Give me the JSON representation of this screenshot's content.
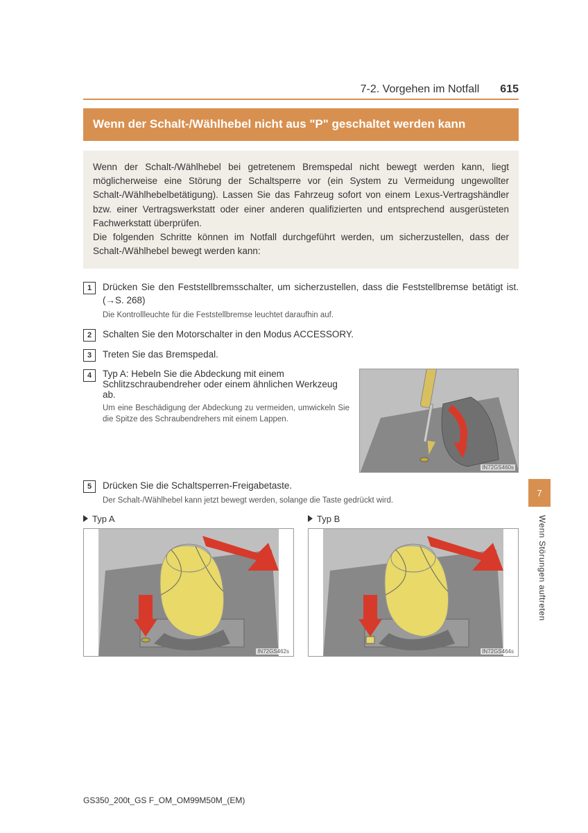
{
  "header": {
    "section": "7-2. Vorgehen im Notfall",
    "page_number": "615"
  },
  "title": "Wenn der Schalt-/Wählhebel nicht aus \"P\" geschaltet werden kann",
  "intro": "Wenn der Schalt-/Wählhebel bei getretenem Bremspedal nicht bewegt werden kann, liegt möglicherweise eine Störung der Schaltsperre vor (ein System zu Vermeidung ungewollter Schalt-/Wählhebelbetätigung). Lassen Sie das Fahrzeug sofort von einem Lexus-Vertragshändler bzw. einer Vertragswerkstatt oder einer anderen qualifizierten und entsprechend ausgerüsteten Fachwerkstatt überprüfen.\nDie folgenden Schritte können im Notfall durchgeführt werden, um sicherzustellen, dass der Schalt-/Wählhebel bewegt werden kann:",
  "steps": {
    "s1": {
      "num": "1",
      "text": "Drücken Sie den Feststellbremsschalter, um sicherzustellen, dass die Feststellbremse betätigt ist. (→S. 268)",
      "note": "Die Kontrollleuchte für die Feststellbremse leuchtet daraufhin auf."
    },
    "s2": {
      "num": "2",
      "text": "Schalten Sie den Motorschalter in den Modus ACCESSORY."
    },
    "s3": {
      "num": "3",
      "text": "Treten Sie das Bremspedal."
    },
    "s4": {
      "num": "4",
      "text": "Typ A: Hebeln Sie die Abdeckung mit einem Schlitzschraubendreher oder einem ähnlichen Werkzeug ab.",
      "note": "Um eine Beschädigung der Abdeckung zu vermeiden, umwickeln Sie die Spitze des Schraubendrehers mit einem Lappen."
    },
    "s5": {
      "num": "5",
      "text": "Drücken Sie die Schaltsperren-Freigabetaste.",
      "note": "Der Schalt-/Wählhebel kann jetzt bewegt werden, solange die Taste gedrückt wird."
    }
  },
  "types": {
    "a": "Typ A",
    "b": "Typ B"
  },
  "illustrations": {
    "top_id": "IN72GS460s",
    "a_id": "IN72GS462s",
    "b_id": "IN72GS464s"
  },
  "sidebar": {
    "chapter": "7",
    "label": "Wenn Störungen auftreten"
  },
  "footer": "GS350_200t_GS F_OM_OM99M50M_(EM)",
  "colors": {
    "accent": "#d89050",
    "intro_bg": "#f1ede7",
    "arrow_red": "#d73a2a",
    "knob_yellow": "#e8d968"
  }
}
